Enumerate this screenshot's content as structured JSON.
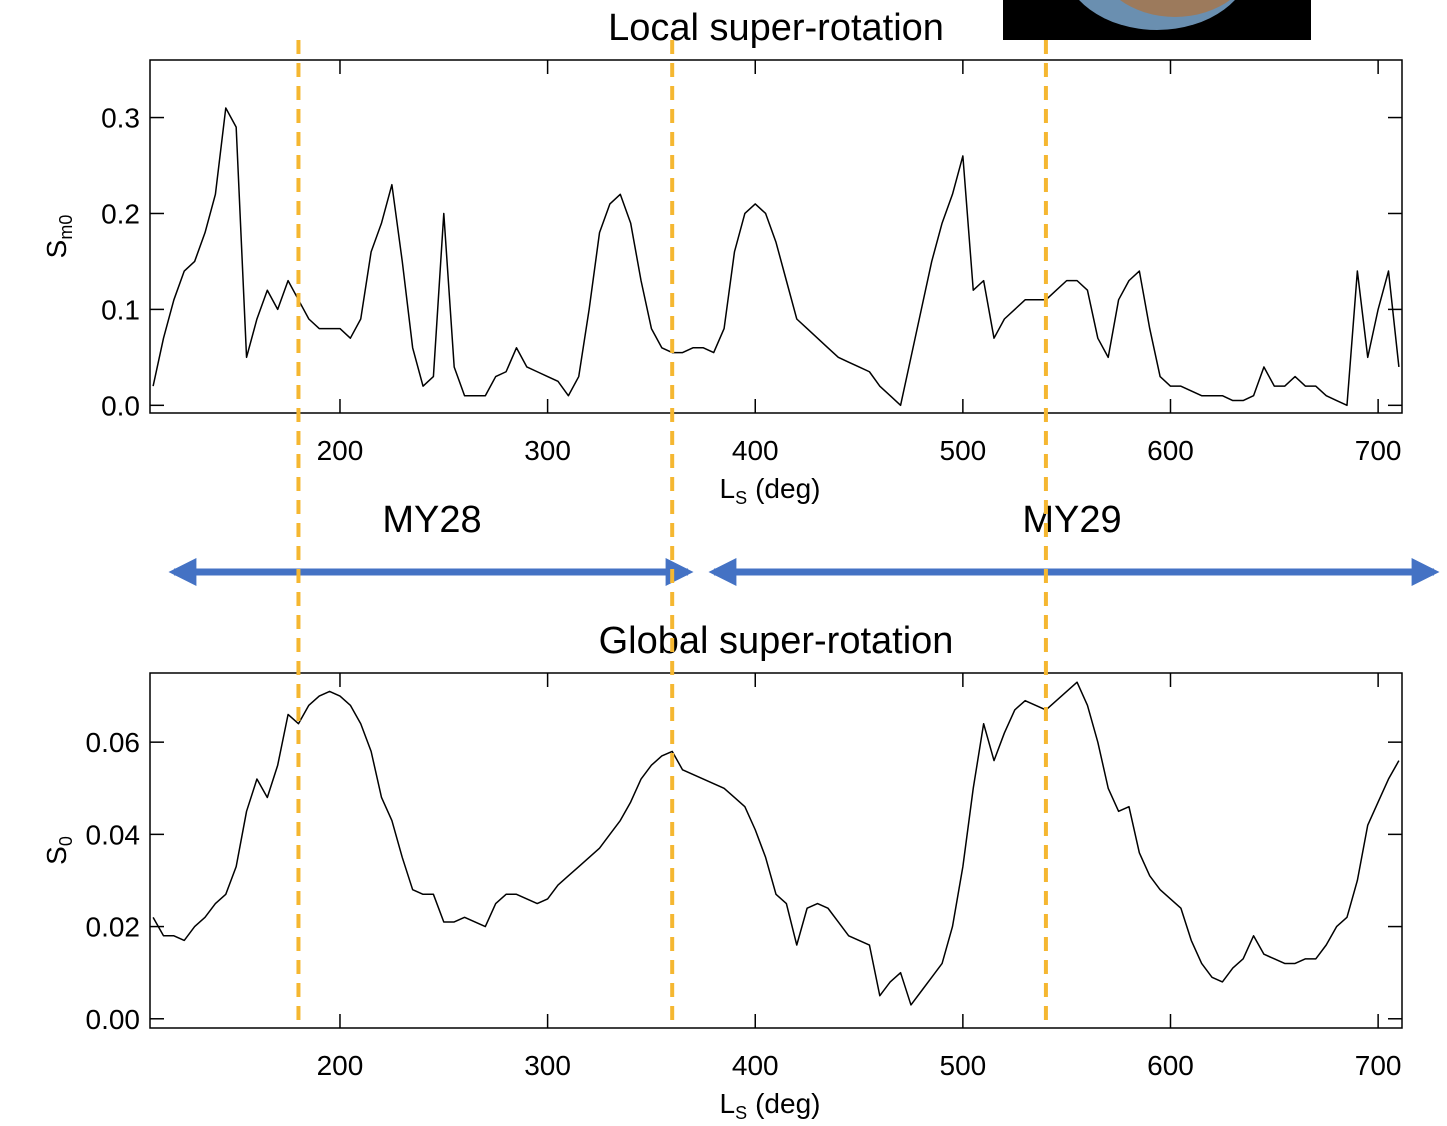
{
  "chart_data": [
    {
      "type": "line",
      "title": "Local super-rotation",
      "ylabel": "S",
      "ylabel_sub": "m0",
      "xlabel": "L",
      "xlabel_sub": "S",
      "xlabel_unit": "(deg)",
      "color": "#000000",
      "xlim": [
        108.5,
        711.5
      ],
      "ylim": [
        -0.008,
        0.36
      ],
      "xticks": [
        200,
        300,
        400,
        500,
        600,
        700
      ],
      "yticks": [
        {
          "value": 0,
          "label": "0.0"
        },
        0.1,
        0.2,
        0.3
      ],
      "x": [
        110,
        115,
        120,
        125,
        130,
        135,
        140,
        145,
        150,
        155,
        160,
        165,
        170,
        175,
        180,
        185,
        190,
        195,
        200,
        205,
        210,
        215,
        220,
        225,
        230,
        235,
        240,
        245,
        250,
        255,
        260,
        265,
        270,
        275,
        280,
        285,
        290,
        295,
        300,
        305,
        310,
        315,
        320,
        325,
        330,
        335,
        340,
        345,
        350,
        355,
        360,
        365,
        370,
        375,
        380,
        385,
        390,
        395,
        400,
        405,
        410,
        415,
        420,
        425,
        430,
        435,
        440,
        445,
        450,
        455,
        460,
        465,
        470,
        475,
        480,
        485,
        490,
        495,
        500,
        505,
        510,
        515,
        520,
        525,
        530,
        535,
        540,
        545,
        550,
        555,
        560,
        565,
        570,
        575,
        580,
        585,
        590,
        595,
        600,
        605,
        610,
        615,
        620,
        625,
        630,
        635,
        640,
        645,
        650,
        655,
        660,
        665,
        670,
        675,
        680,
        685,
        690,
        695,
        700,
        705,
        710
      ],
      "values": [
        0.02,
        0.07,
        0.11,
        0.14,
        0.15,
        0.18,
        0.22,
        0.31,
        0.29,
        0.05,
        0.09,
        0.12,
        0.1,
        0.13,
        0.11,
        0.09,
        0.08,
        0.08,
        0.08,
        0.07,
        0.09,
        0.16,
        0.19,
        0.23,
        0.15,
        0.06,
        0.02,
        0.03,
        0.2,
        0.04,
        0.01,
        0.01,
        0.01,
        0.03,
        0.035,
        0.06,
        0.04,
        0.035,
        0.03,
        0.025,
        0.01,
        0.03,
        0.1,
        0.18,
        0.21,
        0.22,
        0.19,
        0.13,
        0.08,
        0.06,
        0.055,
        0.055,
        0.06,
        0.06,
        0.055,
        0.08,
        0.16,
        0.2,
        0.21,
        0.2,
        0.17,
        0.13,
        0.09,
        0.08,
        0.07,
        0.06,
        0.05,
        0.045,
        0.04,
        0.035,
        0.02,
        0.01,
        0.0,
        0.05,
        0.1,
        0.15,
        0.19,
        0.22,
        0.26,
        0.12,
        0.13,
        0.07,
        0.09,
        0.1,
        0.11,
        0.11,
        0.11,
        0.12,
        0.13,
        0.13,
        0.12,
        0.07,
        0.05,
        0.11,
        0.13,
        0.14,
        0.08,
        0.03,
        0.02,
        0.02,
        0.015,
        0.01,
        0.01,
        0.01,
        0.005,
        0.005,
        0.01,
        0.04,
        0.02,
        0.02,
        0.03,
        0.02,
        0.02,
        0.01,
        0.005,
        0.0,
        0.14,
        0.05,
        0.1,
        0.14,
        0.04
      ]
    },
    {
      "type": "line",
      "title": "Global super-rotation",
      "ylabel": "S",
      "ylabel_sub": "0",
      "xlabel": "L",
      "xlabel_sub": "S",
      "xlabel_unit": "(deg)",
      "color": "#000000",
      "xlim": [
        108.5,
        711.5
      ],
      "ylim": [
        -0.002,
        0.075
      ],
      "xticks": [
        200,
        300,
        400,
        500,
        600,
        700
      ],
      "yticks": [
        {
          "value": 0,
          "label": "0.00"
        },
        0.02,
        0.04,
        0.06
      ],
      "x": [
        110,
        115,
        120,
        125,
        130,
        135,
        140,
        145,
        150,
        155,
        160,
        165,
        170,
        175,
        180,
        185,
        190,
        195,
        200,
        205,
        210,
        215,
        220,
        225,
        230,
        235,
        240,
        245,
        250,
        255,
        260,
        265,
        270,
        275,
        280,
        285,
        290,
        295,
        300,
        305,
        310,
        315,
        320,
        325,
        330,
        335,
        340,
        345,
        350,
        355,
        360,
        365,
        370,
        375,
        380,
        385,
        390,
        395,
        400,
        405,
        410,
        415,
        420,
        425,
        430,
        435,
        440,
        445,
        450,
        455,
        460,
        465,
        470,
        475,
        480,
        485,
        490,
        495,
        500,
        505,
        510,
        515,
        520,
        525,
        530,
        535,
        540,
        545,
        550,
        555,
        560,
        565,
        570,
        575,
        580,
        585,
        590,
        595,
        600,
        605,
        610,
        615,
        620,
        625,
        630,
        635,
        640,
        645,
        650,
        655,
        660,
        665,
        670,
        675,
        680,
        685,
        690,
        695,
        700,
        705,
        710
      ],
      "values": [
        0.022,
        0.018,
        0.018,
        0.017,
        0.02,
        0.022,
        0.025,
        0.027,
        0.033,
        0.045,
        0.052,
        0.048,
        0.055,
        0.066,
        0.064,
        0.068,
        0.07,
        0.071,
        0.07,
        0.068,
        0.064,
        0.058,
        0.048,
        0.043,
        0.035,
        0.028,
        0.027,
        0.027,
        0.021,
        0.021,
        0.022,
        0.021,
        0.02,
        0.025,
        0.027,
        0.027,
        0.026,
        0.025,
        0.026,
        0.029,
        0.031,
        0.033,
        0.035,
        0.037,
        0.04,
        0.043,
        0.047,
        0.052,
        0.055,
        0.057,
        0.058,
        0.054,
        0.053,
        0.052,
        0.051,
        0.05,
        0.048,
        0.046,
        0.041,
        0.035,
        0.027,
        0.025,
        0.016,
        0.024,
        0.025,
        0.024,
        0.021,
        0.018,
        0.017,
        0.016,
        0.005,
        0.008,
        0.01,
        0.003,
        0.006,
        0.009,
        0.012,
        0.02,
        0.033,
        0.05,
        0.064,
        0.056,
        0.062,
        0.067,
        0.069,
        0.068,
        0.067,
        0.069,
        0.071,
        0.073,
        0.068,
        0.06,
        0.05,
        0.045,
        0.046,
        0.036,
        0.031,
        0.028,
        0.026,
        0.024,
        0.017,
        0.012,
        0.009,
        0.008,
        0.011,
        0.013,
        0.018,
        0.014,
        0.013,
        0.012,
        0.012,
        0.013,
        0.013,
        0.016,
        0.02,
        0.022,
        0.03,
        0.042,
        0.047,
        0.052,
        0.056
      ]
    }
  ],
  "era_labels": [
    "MY28",
    "MY29"
  ],
  "reference_lines": {
    "x": [
      180,
      360,
      540
    ],
    "color": "#f5b731"
  }
}
